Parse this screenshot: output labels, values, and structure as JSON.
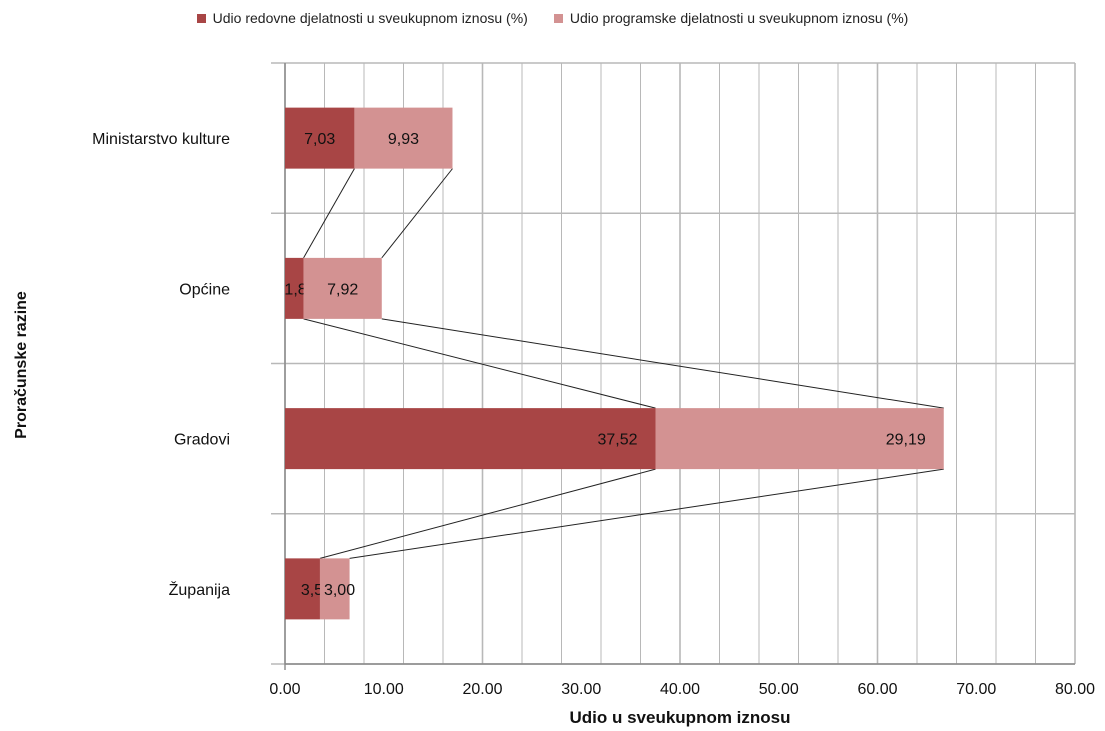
{
  "chart_data": {
    "type": "bar",
    "orientation": "horizontal",
    "stacked": true,
    "categories": [
      "Ministarstvo kulture",
      "Općine",
      "Gradovi",
      "Županija"
    ],
    "series": [
      {
        "name": "Udio redovne djelatnosti u sveukupnom iznosu (%)",
        "values": [
          7.03,
          1.88,
          37.52,
          3.54
        ],
        "labels": [
          "7,03",
          "1,88",
          "37,52",
          "3,54"
        ]
      },
      {
        "name": "Udio programske djelatnosti u sveukupnom iznosu (%)",
        "values": [
          9.93,
          7.92,
          29.19,
          3.0
        ],
        "labels": [
          "9,93",
          "7,92",
          "29,19",
          "3,00"
        ]
      }
    ],
    "xlabel": "Udio u sveukupnom iznosu",
    "ylabel": "Proračunske razine",
    "xlim": [
      0,
      80
    ],
    "xticks": [
      "0.00",
      "10.00",
      "20.00",
      "30.00",
      "40.00",
      "50.00",
      "60.00",
      "70.00",
      "80.00"
    ],
    "minor_step": 4,
    "grid": true,
    "series_lines": true,
    "legend_position": "top"
  },
  "colors": {
    "redovne": "#A84545",
    "programske": "#D39292",
    "grid": "#B8B8B8",
    "connector": "#222222"
  }
}
